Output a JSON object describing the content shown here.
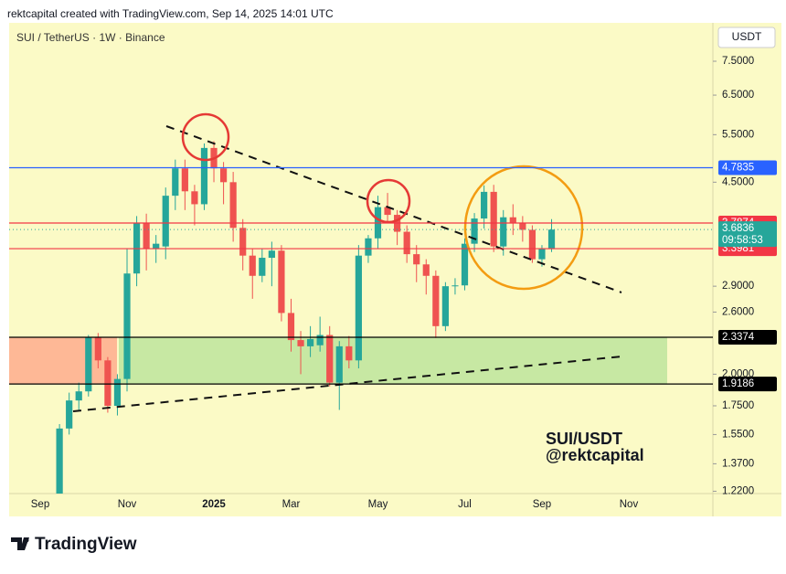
{
  "header": {
    "text": "rektcapital created with TradingView.com, Sep 14, 2025 14:01 UTC"
  },
  "chart_data": {
    "type": "candlestick",
    "title": "SUI / TetherUS · 1W · Binance",
    "currency": "USDT",
    "log_scale": true,
    "up_color": "#26a69a",
    "down_color": "#ef5350",
    "categories": [
      "Sep",
      null,
      null,
      null,
      null,
      null,
      null,
      null,
      null,
      "Nov",
      null,
      null,
      null,
      null,
      null,
      null,
      null,
      null,
      "2025",
      null,
      null,
      null,
      null,
      null,
      null,
      null,
      "Mar",
      null,
      null,
      null,
      null,
      null,
      null,
      null,
      null,
      "May",
      null,
      null,
      null,
      null,
      null,
      null,
      null,
      null,
      "Jul",
      null,
      null,
      null,
      null,
      null,
      null,
      null,
      "Sep",
      null,
      null,
      null,
      null,
      null,
      null,
      null,
      null,
      "Nov",
      null,
      null,
      null,
      null,
      null,
      null,
      null,
      null
    ],
    "open": [
      null,
      null,
      1.17,
      1.59,
      1.79,
      1.86,
      2.34,
      2.12,
      1.75,
      1.96,
      3.06,
      3.78,
      3.4,
      3.43,
      4.25,
      4.77,
      4.33,
      4.1,
      5.2,
      4.77,
      4.5,
      3.71,
      3.3,
      3.03,
      3.27,
      3.37,
      2.59,
      2.31,
      2.25,
      2.26,
      2.36,
      1.93,
      2.25,
      2.12,
      3.3,
      3.55,
      4.05,
      3.92,
      3.65,
      3.32,
      3.18,
      3.03,
      2.45,
      2.9,
      2.91,
      3.47,
      3.86,
      4.32,
      3.43,
      3.88,
      3.78,
      3.68,
      3.25,
      3.4,
      null,
      null,
      null,
      null,
      null,
      null,
      null,
      null,
      null,
      null,
      null,
      null,
      null,
      null,
      null,
      null
    ],
    "high": [
      null,
      null,
      1.62,
      1.85,
      1.93,
      2.36,
      2.38,
      2.15,
      2.0,
      3.4,
      3.9,
      3.94,
      3.6,
      4.4,
      4.95,
      4.95,
      4.45,
      5.3,
      5.35,
      4.9,
      4.7,
      3.85,
      3.4,
      3.4,
      3.5,
      3.45,
      2.75,
      2.4,
      2.45,
      2.55,
      2.45,
      2.3,
      2.35,
      3.45,
      3.6,
      4.25,
      4.3,
      4.0,
      3.75,
      3.45,
      3.25,
      3.1,
      2.95,
      3.0,
      3.55,
      3.95,
      4.44,
      4.45,
      4.0,
      4.1,
      3.9,
      3.75,
      3.45,
      3.85,
      null,
      null,
      null,
      null,
      null,
      null,
      null,
      null,
      null,
      null,
      null,
      null,
      null,
      null,
      null,
      null
    ],
    "low": [
      null,
      null,
      1.15,
      1.55,
      1.72,
      1.82,
      2.05,
      1.7,
      1.68,
      1.86,
      2.9,
      3.1,
      3.2,
      3.25,
      4.0,
      4.0,
      3.75,
      4.0,
      4.5,
      4.1,
      3.5,
      3.1,
      2.75,
      2.95,
      2.9,
      2.5,
      2.2,
      2.0,
      2.15,
      2.2,
      1.9,
      1.72,
      2.05,
      2.05,
      3.2,
      3.4,
      3.8,
      3.45,
      3.2,
      2.95,
      2.8,
      2.33,
      2.4,
      2.8,
      2.85,
      3.35,
      3.7,
      3.35,
      3.3,
      3.6,
      3.5,
      3.2,
      3.15,
      3.35,
      null,
      null,
      null,
      null,
      null,
      null,
      null,
      null,
      null,
      null,
      null,
      null,
      null,
      null,
      null,
      null
    ],
    "close": [
      null,
      null,
      1.59,
      1.79,
      1.86,
      2.34,
      2.12,
      1.75,
      1.96,
      3.06,
      3.78,
      3.4,
      3.47,
      4.25,
      4.77,
      4.33,
      4.1,
      5.2,
      4.77,
      4.5,
      3.71,
      3.3,
      3.03,
      3.27,
      3.37,
      2.59,
      2.31,
      2.25,
      2.32,
      2.36,
      1.93,
      2.25,
      2.12,
      3.3,
      3.55,
      4.05,
      3.92,
      3.65,
      3.32,
      3.18,
      3.03,
      2.45,
      2.9,
      2.91,
      3.47,
      3.86,
      4.32,
      3.43,
      3.88,
      3.78,
      3.68,
      3.25,
      3.4,
      3.6836,
      null,
      null,
      null,
      null,
      null,
      null,
      null,
      null,
      null,
      null,
      null,
      null,
      null,
      null,
      null,
      null
    ],
    "ylim": [
      1.208,
      8.82
    ],
    "yticks": [
      {
        "value": 7.5,
        "label": "7.5000"
      },
      {
        "value": 6.5,
        "label": "6.5000"
      },
      {
        "value": 5.5,
        "label": "5.5000"
      },
      {
        "value": 4.5,
        "label": "4.5000"
      },
      {
        "value": 2.9,
        "label": "2.9000"
      },
      {
        "value": 2.6,
        "label": "2.6000"
      },
      {
        "value": 2.0,
        "label": "2.0000"
      },
      {
        "value": 1.75,
        "label": "1.7500"
      },
      {
        "value": 1.55,
        "label": "1.5500"
      },
      {
        "value": 1.37,
        "label": "1.3700"
      },
      {
        "value": 1.22,
        "label": "1.2200"
      }
    ],
    "levels": [
      {
        "value": 4.7835,
        "color": "#2962ff"
      },
      {
        "value": 3.7874,
        "color": "#f23645"
      },
      {
        "value": 3.3981,
        "color": "#f23645"
      },
      {
        "value": 2.3374,
        "color": "#000000"
      },
      {
        "value": 1.9186,
        "color": "#000000"
      }
    ],
    "last_price": {
      "value": 3.6836,
      "countdown": "09:58:53",
      "color": "#26a69a"
    },
    "annotations": [
      "SUI/USDT",
      "@rektcapital"
    ]
  },
  "footer": {
    "brand": "TradingView"
  }
}
